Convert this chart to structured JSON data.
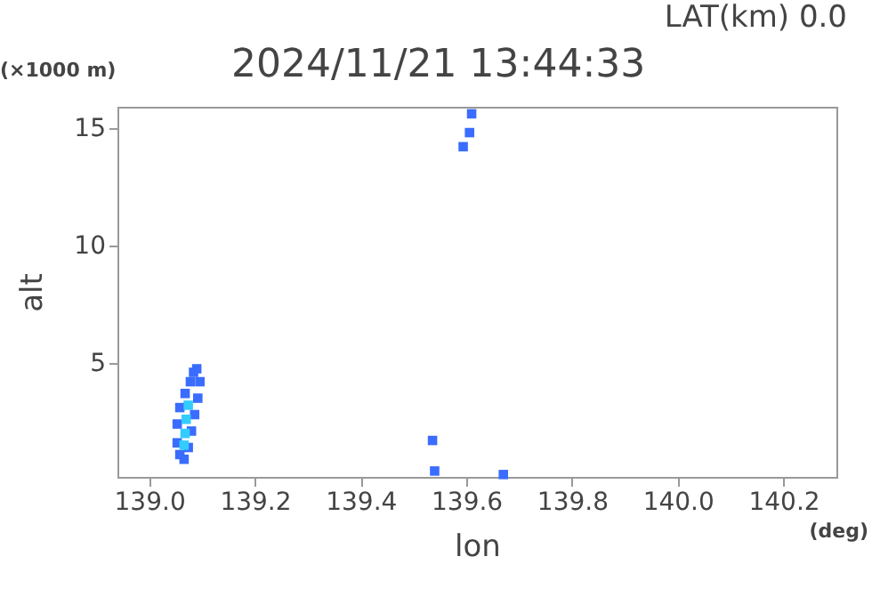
{
  "chart_data": {
    "type": "scatter",
    "title": "2024/11/21 13:44:33",
    "subtitle": "LAT(km) 0.0",
    "xlabel": "lon",
    "ylabel": "alt",
    "annotations": [
      "(×1000 m)",
      "(deg)"
    ],
    "xlim": [
      138.94,
      140.3
    ],
    "xticks": [
      {
        "value": 139,
        "label": "139.0"
      },
      139.2,
      139.4,
      139.6,
      139.8,
      {
        "value": 140,
        "label": "140.0"
      },
      140.2
    ],
    "ylim": [
      0.15,
      15.9
    ],
    "yticks": [
      5,
      10,
      15
    ],
    "grid": false,
    "marker": "square",
    "series": [
      {
        "color": "#3a6cff",
        "x": [
          139.09,
          139.096,
          139.092,
          139.086,
          139.08,
          139.074,
          139.066,
          139.058,
          139.053,
          139.053,
          139.058,
          139.068,
          139.078,
          139.084,
          139.61,
          139.606,
          139.594,
          139.536,
          139.54,
          139.67
        ],
        "values": [
          4.75,
          4.2,
          3.5,
          2.8,
          2.1,
          1.4,
          0.9,
          1.1,
          1.6,
          2.4,
          3.1,
          3.7,
          4.2,
          4.6,
          15.6,
          14.8,
          14.2,
          1.7,
          0.4,
          0.25
        ]
      },
      {
        "color": "#33ccff",
        "x": [
          139.068,
          139.07,
          139.074,
          139.066
        ],
        "values": [
          2.0,
          2.6,
          3.2,
          1.5
        ]
      }
    ]
  }
}
